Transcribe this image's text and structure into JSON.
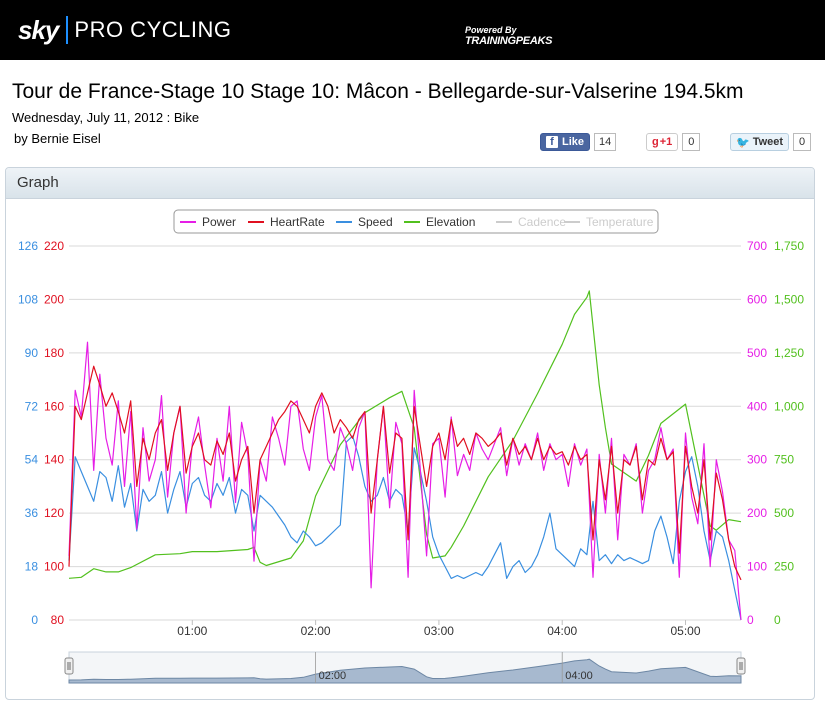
{
  "header": {
    "brand_sky": "sky",
    "brand_pro": "PRO CYCLING",
    "powered_by": "Powered By",
    "powered_name": "TRAININGPEAKS"
  },
  "workout": {
    "title": "Tour de France-Stage 10 Stage 10: Mâcon - Bellegarde-sur-Valserine 194.5km",
    "subtitle": "Wednesday, July 11, 2012 : Bike",
    "author": "by Bernie Eisel"
  },
  "social": {
    "like_label": "Like",
    "like_count": "14",
    "gplus_label": "+1",
    "gplus_count": "0",
    "tweet_label": "Tweet",
    "tweet_count": "0"
  },
  "panel": {
    "title": "Graph"
  },
  "colors": {
    "power": "#e61ee6",
    "heartrate": "#e01020",
    "speed": "#3a8fe0",
    "elevation": "#52c01e",
    "navigator_fill": "#a7b9cf",
    "navigator_line": "#6d87a4"
  },
  "chart_data": {
    "type": "line",
    "x_axis": {
      "unit": "elapsed time (hours)",
      "range": [
        0,
        5.45
      ],
      "tick_values": [
        1,
        2,
        3,
        4,
        5
      ],
      "tick_labels": [
        "01:00",
        "02:00",
        "03:00",
        "04:00",
        "05:00"
      ]
    },
    "y_axes": {
      "speed": {
        "range": [
          0,
          126
        ],
        "ticks": [
          "0",
          "18",
          "36",
          "54",
          "72",
          "90",
          "108",
          "126"
        ]
      },
      "heartrate": {
        "range": [
          80,
          220
        ],
        "ticks": [
          "80",
          "100",
          "120",
          "140",
          "160",
          "180",
          "200",
          "220"
        ]
      },
      "power": {
        "range": [
          0,
          700
        ],
        "ticks": [
          "0",
          "100",
          "200",
          "300",
          "400",
          "500",
          "600",
          "700"
        ]
      },
      "elevation": {
        "range": [
          0,
          1750
        ],
        "ticks": [
          "0",
          "250",
          "500",
          "750",
          "1,000",
          "1,250",
          "1,500",
          "1,750"
        ]
      }
    },
    "grid": true,
    "legend_position": "top-center",
    "legend": [
      {
        "name": "Power",
        "color": "#e61ee6",
        "active": true
      },
      {
        "name": "HeartRate",
        "color": "#e01020",
        "active": true
      },
      {
        "name": "Speed",
        "color": "#3a8fe0",
        "active": true
      },
      {
        "name": "Elevation",
        "color": "#52c01e",
        "active": true
      },
      {
        "name": "Cadence",
        "color": "#cccccc",
        "active": false
      },
      {
        "name": "Temperature",
        "color": "#cccccc",
        "active": false
      }
    ],
    "series": [
      {
        "name": "Elevation",
        "axis": "elevation",
        "x": [
          0,
          0.1,
          0.2,
          0.3,
          0.4,
          0.5,
          0.7,
          0.9,
          1.0,
          1.2,
          1.45,
          1.5,
          1.55,
          1.6,
          1.8,
          1.9,
          2.0,
          2.2,
          2.4,
          2.6,
          2.7,
          2.8,
          2.9,
          2.95,
          3.05,
          3.1,
          3.2,
          3.4,
          3.6,
          3.8,
          4.0,
          4.1,
          4.2,
          4.22,
          4.3,
          4.35,
          4.4,
          4.6,
          4.7,
          4.8,
          5.0,
          5.2,
          5.25,
          5.35,
          5.45
        ],
        "y": [
          195,
          200,
          240,
          225,
          225,
          245,
          305,
          310,
          320,
          320,
          330,
          340,
          270,
          255,
          290,
          370,
          580,
          820,
          970,
          1040,
          1070,
          900,
          400,
          290,
          300,
          340,
          440,
          670,
          840,
          1060,
          1290,
          1430,
          1510,
          1540,
          1100,
          900,
          730,
          650,
          770,
          920,
          1010,
          440,
          420,
          470,
          460
        ]
      },
      {
        "name": "Power",
        "axis": "power",
        "x": [
          0,
          0.05,
          0.1,
          0.15,
          0.2,
          0.25,
          0.3,
          0.35,
          0.4,
          0.45,
          0.5,
          0.55,
          0.6,
          0.65,
          0.7,
          0.75,
          0.8,
          0.85,
          0.9,
          0.95,
          1.0,
          1.05,
          1.1,
          1.15,
          1.2,
          1.25,
          1.3,
          1.35,
          1.4,
          1.45,
          1.5,
          1.55,
          1.6,
          1.65,
          1.7,
          1.75,
          1.8,
          1.85,
          1.9,
          1.95,
          2.0,
          2.05,
          2.1,
          2.15,
          2.2,
          2.25,
          2.3,
          2.35,
          2.4,
          2.45,
          2.5,
          2.55,
          2.6,
          2.65,
          2.7,
          2.75,
          2.8,
          2.85,
          2.9,
          2.95,
          3.0,
          3.05,
          3.1,
          3.15,
          3.2,
          3.25,
          3.3,
          3.35,
          3.4,
          3.45,
          3.5,
          3.55,
          3.6,
          3.65,
          3.7,
          3.75,
          3.8,
          3.85,
          3.9,
          3.95,
          4.0,
          4.05,
          4.1,
          4.15,
          4.2,
          4.25,
          4.3,
          4.35,
          4.4,
          4.45,
          4.5,
          4.55,
          4.6,
          4.65,
          4.7,
          4.75,
          4.8,
          4.85,
          4.9,
          4.95,
          5.0,
          5.05,
          5.1,
          5.15,
          5.2,
          5.25,
          5.3,
          5.35,
          5.4,
          5.45
        ],
        "y": [
          120,
          430,
          380,
          520,
          280,
          460,
          340,
          290,
          410,
          250,
          390,
          170,
          360,
          260,
          300,
          420,
          230,
          350,
          400,
          200,
          330,
          380,
          290,
          210,
          340,
          260,
          400,
          220,
          370,
          310,
          110,
          300,
          260,
          380,
          340,
          290,
          400,
          410,
          320,
          280,
          380,
          420,
          300,
          280,
          360,
          330,
          280,
          360,
          390,
          60,
          300,
          400,
          210,
          370,
          330,
          80,
          430,
          280,
          120,
          330,
          340,
          230,
          380,
          270,
          310,
          280,
          350,
          320,
          300,
          330,
          360,
          270,
          340,
          290,
          330,
          300,
          350,
          280,
          330,
          300,
          310,
          250,
          330,
          290,
          320,
          80,
          310,
          200,
          340,
          150,
          310,
          290,
          330,
          200,
          280,
          300,
          360,
          300,
          320,
          80,
          350,
          230,
          180,
          330,
          100,
          300,
          240,
          150,
          130,
          0
        ]
      },
      {
        "name": "HeartRate",
        "axis": "heartrate",
        "x": [
          0,
          0.05,
          0.1,
          0.15,
          0.2,
          0.25,
          0.3,
          0.35,
          0.4,
          0.45,
          0.5,
          0.55,
          0.6,
          0.65,
          0.7,
          0.75,
          0.8,
          0.85,
          0.9,
          0.95,
          1.0,
          1.05,
          1.1,
          1.15,
          1.2,
          1.25,
          1.3,
          1.35,
          1.4,
          1.45,
          1.5,
          1.55,
          1.6,
          1.65,
          1.7,
          1.75,
          1.8,
          1.85,
          1.9,
          1.95,
          2.0,
          2.05,
          2.1,
          2.15,
          2.2,
          2.25,
          2.3,
          2.35,
          2.4,
          2.45,
          2.5,
          2.55,
          2.6,
          2.65,
          2.7,
          2.75,
          2.8,
          2.85,
          2.9,
          2.95,
          3.0,
          3.05,
          3.1,
          3.15,
          3.2,
          3.25,
          3.3,
          3.35,
          3.4,
          3.45,
          3.5,
          3.55,
          3.6,
          3.65,
          3.7,
          3.75,
          3.8,
          3.85,
          3.9,
          3.95,
          4.0,
          4.05,
          4.1,
          4.15,
          4.2,
          4.25,
          4.3,
          4.35,
          4.4,
          4.45,
          4.5,
          4.55,
          4.6,
          4.65,
          4.7,
          4.75,
          4.8,
          4.85,
          4.9,
          4.95,
          5.0,
          5.05,
          5.1,
          5.15,
          5.2,
          5.25,
          5.3,
          5.35,
          5.4,
          5.45
        ],
        "y": [
          100,
          160,
          155,
          165,
          175,
          168,
          160,
          165,
          158,
          150,
          162,
          130,
          148,
          140,
          150,
          155,
          136,
          150,
          160,
          135,
          145,
          150,
          140,
          138,
          147,
          142,
          150,
          132,
          140,
          145,
          120,
          140,
          145,
          150,
          155,
          158,
          162,
          160,
          155,
          150,
          160,
          165,
          160,
          150,
          155,
          152,
          148,
          155,
          158,
          120,
          140,
          160,
          135,
          150,
          148,
          110,
          160,
          145,
          130,
          145,
          150,
          140,
          155,
          145,
          148,
          142,
          150,
          148,
          145,
          147,
          150,
          138,
          148,
          142,
          145,
          140,
          148,
          140,
          145,
          142,
          143,
          138,
          145,
          140,
          142,
          110,
          140,
          125,
          145,
          120,
          140,
          138,
          145,
          125,
          140,
          138,
          148,
          140,
          143,
          105,
          145,
          130,
          120,
          140,
          110,
          135,
          125,
          110,
          100,
          95
        ]
      },
      {
        "name": "Speed",
        "axis": "speed",
        "x": [
          0,
          0.05,
          0.1,
          0.15,
          0.2,
          0.25,
          0.3,
          0.35,
          0.4,
          0.45,
          0.5,
          0.55,
          0.6,
          0.65,
          0.7,
          0.75,
          0.8,
          0.85,
          0.9,
          0.95,
          1.0,
          1.05,
          1.1,
          1.15,
          1.2,
          1.25,
          1.3,
          1.35,
          1.4,
          1.45,
          1.5,
          1.55,
          1.6,
          1.65,
          1.7,
          1.75,
          1.8,
          1.85,
          1.9,
          1.95,
          2.0,
          2.05,
          2.1,
          2.15,
          2.2,
          2.25,
          2.3,
          2.35,
          2.4,
          2.45,
          2.5,
          2.55,
          2.6,
          2.65,
          2.7,
          2.75,
          2.8,
          2.85,
          2.9,
          2.95,
          3.0,
          3.05,
          3.1,
          3.15,
          3.2,
          3.25,
          3.3,
          3.35,
          3.4,
          3.45,
          3.5,
          3.55,
          3.6,
          3.65,
          3.7,
          3.75,
          3.8,
          3.85,
          3.9,
          3.95,
          4.0,
          4.05,
          4.1,
          4.15,
          4.2,
          4.25,
          4.3,
          4.35,
          4.4,
          4.45,
          4.5,
          4.55,
          4.6,
          4.65,
          4.7,
          4.75,
          4.8,
          4.85,
          4.9,
          4.95,
          5.0,
          5.05,
          5.1,
          5.15,
          5.2,
          5.25,
          5.3,
          5.35,
          5.4,
          5.45
        ],
        "y": [
          20,
          55,
          50,
          45,
          40,
          50,
          48,
          40,
          52,
          38,
          46,
          30,
          44,
          40,
          42,
          50,
          36,
          44,
          50,
          38,
          46,
          48,
          42,
          40,
          46,
          42,
          48,
          36,
          44,
          42,
          30,
          42,
          40,
          38,
          35,
          32,
          28,
          26,
          30,
          28,
          25,
          26,
          28,
          30,
          32,
          60,
          62,
          55,
          45,
          40,
          42,
          48,
          40,
          44,
          42,
          30,
          58,
          50,
          40,
          28,
          22,
          18,
          14,
          15,
          14,
          15,
          16,
          15,
          18,
          22,
          26,
          14,
          18,
          20,
          16,
          18,
          22,
          28,
          36,
          24,
          22,
          20,
          18,
          24,
          22,
          40,
          20,
          22,
          19,
          22,
          20,
          21,
          20,
          19,
          20,
          30,
          35,
          28,
          19,
          40,
          50,
          55,
          45,
          30,
          20,
          30,
          28,
          20,
          10,
          0
        ]
      }
    ],
    "navigator": {
      "tick_labels": [
        "02:00",
        "04:00"
      ],
      "series": "Elevation"
    }
  }
}
